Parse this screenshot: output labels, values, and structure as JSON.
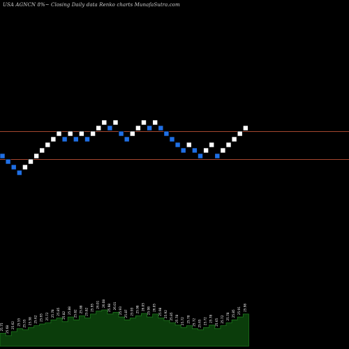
{
  "title": "USA AGNCN 8%~ Closing Daily data Renko charts MunafaSutra.com",
  "colors": {
    "background": "#000000",
    "up_brick": "#ffffff",
    "down_brick": "#1f6fe5",
    "level_line": "#a5472f",
    "volume_fill": "#0b3d0b",
    "volume_stroke": "#1e7a1e",
    "volume_label": "#ffffff"
  },
  "chart_data": {
    "type": "renko",
    "title": "USA AGNCN 8%~ Closing Daily data Renko charts MunafaSutra.com",
    "brick_levels": [
      0,
      -1,
      -2,
      -3,
      -2,
      -1,
      0,
      1,
      2,
      3,
      4,
      3,
      4,
      3,
      4,
      3,
      4,
      5,
      6,
      5,
      6,
      4,
      3,
      4,
      5,
      6,
      5,
      6,
      5,
      4,
      3,
      2,
      1,
      2,
      1,
      0,
      1,
      2,
      0,
      1,
      2,
      3,
      4,
      5
    ],
    "brick_directions": [
      "down",
      "down",
      "down",
      "down",
      "up",
      "up",
      "up",
      "up",
      "up",
      "up",
      "up",
      "down",
      "up",
      "down",
      "up",
      "down",
      "up",
      "up",
      "up",
      "down",
      "up",
      "down",
      "down",
      "up",
      "up",
      "up",
      "down",
      "up",
      "down",
      "down",
      "down",
      "down",
      "down",
      "up",
      "down",
      "down",
      "up",
      "up",
      "down",
      "up",
      "up",
      "up",
      "up",
      "up"
    ],
    "level_lines": [
      4,
      -1
    ],
    "volume_labels": [
      "25.75",
      "25.68",
      "25.62",
      "25.55",
      "25.55",
      "25.58",
      "25.62",
      "25.65",
      "25.72",
      "25.78",
      "25.85",
      "25.82",
      "25.88",
      "25.82",
      "25.88",
      "25.82",
      "25.95",
      "26.01",
      "26.08",
      "25.98",
      "26.01",
      "25.93",
      "25.87",
      "25.93",
      "25.98",
      "26.05",
      "25.98",
      "26.05",
      "25.98",
      "25.92",
      "25.85",
      "25.78",
      "25.72",
      "25.78",
      "25.72",
      "25.65",
      "25.72",
      "25.78",
      "25.65",
      "25.72",
      "25.78",
      "25.85",
      "25.91",
      "25.98"
    ],
    "volume_values": [
      22,
      18,
      25,
      30,
      28,
      32,
      35,
      38,
      40,
      45,
      48,
      42,
      50,
      45,
      52,
      48,
      55,
      60,
      62,
      55,
      58,
      50,
      45,
      48,
      52,
      56,
      50,
      55,
      48,
      44,
      40,
      36,
      32,
      35,
      30,
      28,
      32,
      36,
      30,
      35,
      40,
      45,
      50,
      55
    ]
  }
}
